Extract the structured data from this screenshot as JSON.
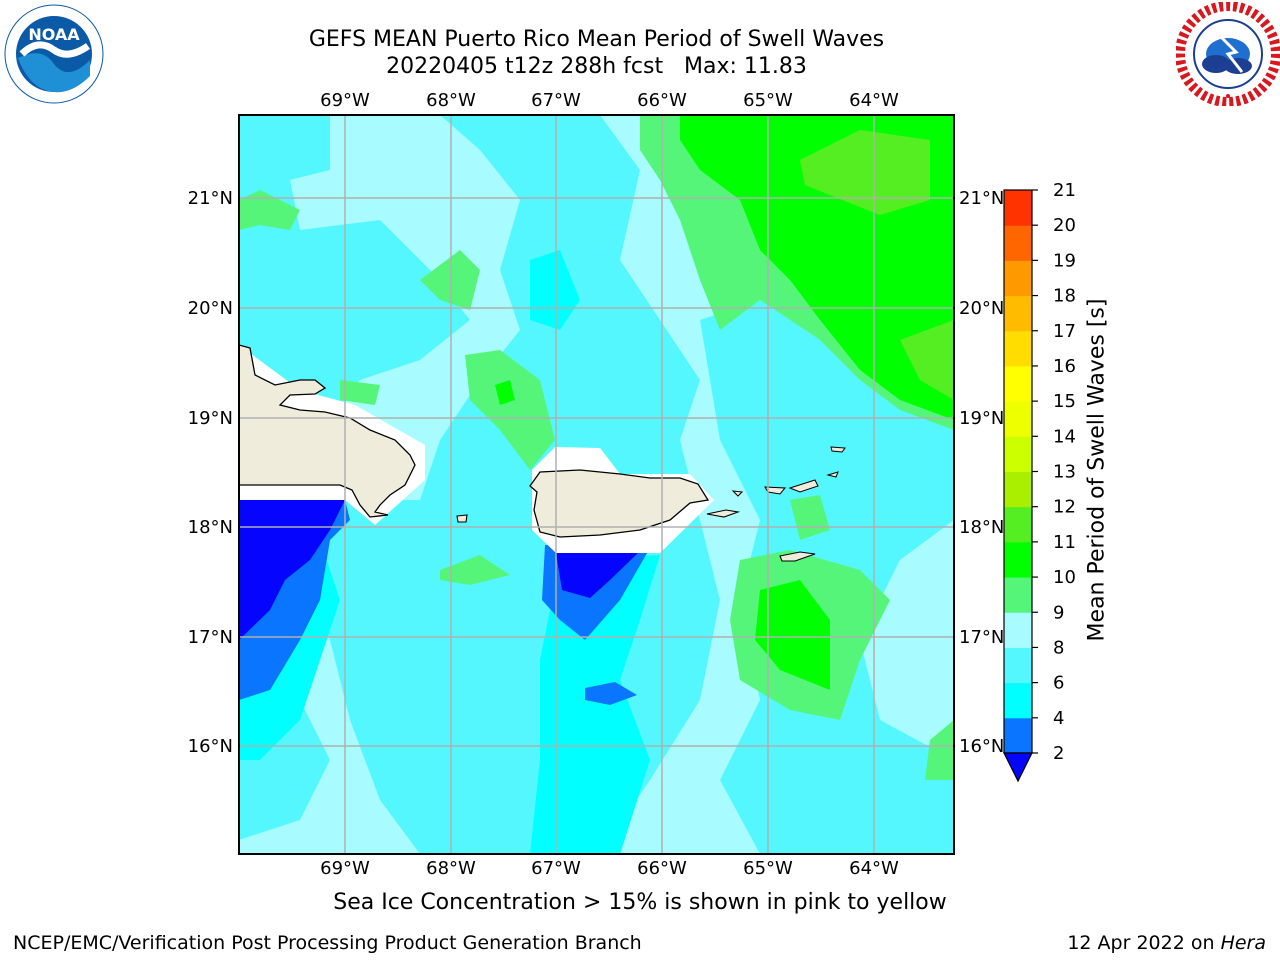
{
  "header": {
    "title": "GEFS MEAN Puerto Rico Mean Period of Swell Waves",
    "subtitle": "20220405 t12z 288h fcst   Max: 11.83"
  },
  "map": {
    "lon_labels": [
      "69°W",
      "68°W",
      "67°W",
      "66°W",
      "65°W",
      "64°W"
    ],
    "lat_labels": [
      "21°N",
      "20°N",
      "19°N",
      "18°N",
      "17°N",
      "16°N"
    ],
    "land_color": "#efecdc",
    "grid_color": "#b0b0b0"
  },
  "colorbar": {
    "label": "Mean Period of Swell Waves [s]",
    "ticks": [
      "2",
      "4",
      "6",
      "8",
      "9",
      "10",
      "11",
      "12",
      "13",
      "14",
      "15",
      "16",
      "17",
      "18",
      "19",
      "20",
      "21"
    ],
    "colors": [
      "#0505ff",
      "#0a75ff",
      "#00ffff",
      "#55f7ff",
      "#a8fcff",
      "#55f57a",
      "#00ff00",
      "#55ee22",
      "#aaee00",
      "#ccff00",
      "#eeff00",
      "#ffff00",
      "#ffdd00",
      "#ffbb00",
      "#ff9900",
      "#ff6600",
      "#ff3300",
      "#ff0000"
    ]
  },
  "logos": {
    "noaa": {
      "text": "NOAA",
      "color": "#0a5aa8"
    },
    "nws": {
      "color": "#d8171e"
    }
  },
  "footer": {
    "note": "Sea Ice Concentration > 15% is shown in pink to yellow",
    "credit": "NCEP/EMC/Verification Post Processing Product Generation Branch",
    "date": "12 Apr 2022 on",
    "machine": "Hera"
  }
}
